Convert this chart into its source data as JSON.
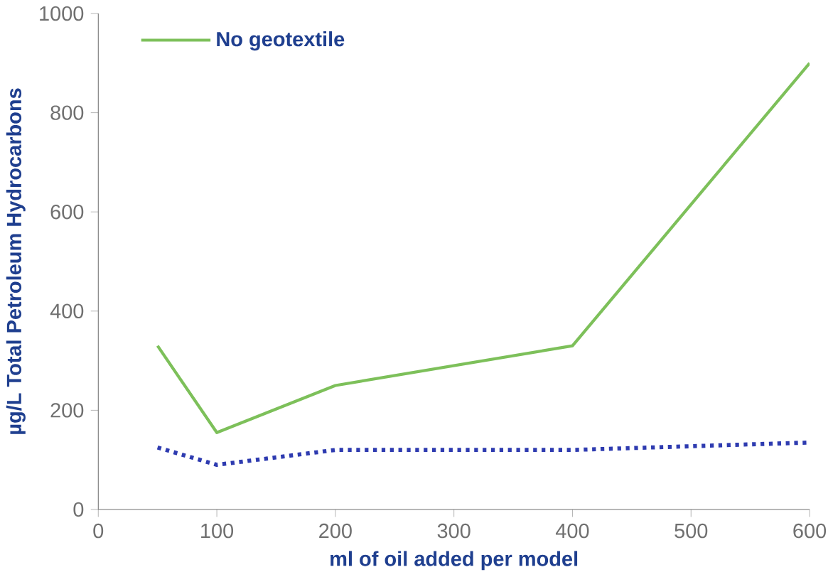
{
  "chart_data": {
    "type": "line",
    "xlabel": "ml of oil added per model",
    "ylabel": "µg/L Total Petroleum Hydrocarbons",
    "x": [
      50,
      100,
      200,
      400,
      600
    ],
    "series": [
      {
        "name": "No geotextile",
        "color": "#7dc05a",
        "line_style": "solid",
        "values": [
          330,
          155,
          250,
          330,
          900
        ]
      },
      {
        "color": "#2e3bb0",
        "line_style": "dotted",
        "values": [
          125,
          90,
          120,
          120,
          135
        ]
      }
    ],
    "xlim": [
      0,
      600
    ],
    "ylim": [
      0,
      1000
    ],
    "xticks": [
      0,
      100,
      200,
      300,
      400,
      500,
      600
    ],
    "yticks": [
      0,
      200,
      400,
      600,
      800,
      1000
    ],
    "grid": false,
    "legend": "top left",
    "marker": "none"
  }
}
